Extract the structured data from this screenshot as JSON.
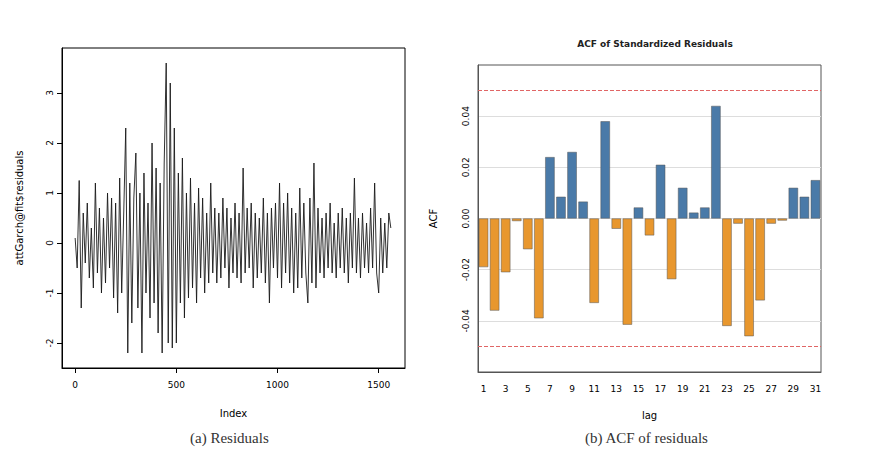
{
  "chart_data": [
    {
      "type": "line",
      "caption": "(a) Residuals",
      "x_label": "Index",
      "y_label": "attGarch@fit$residuals",
      "color": "#1a1a1a",
      "grid": false,
      "xlim": [
        -65,
        1630
      ],
      "xticks": [
        0,
        500,
        1000,
        1500
      ],
      "ylim": [
        -2.5,
        3.9
      ],
      "yticks": [
        -2,
        -1,
        0,
        1,
        2,
        3
      ],
      "x": [
        0,
        10,
        20,
        30,
        40,
        50,
        60,
        70,
        80,
        90,
        100,
        110,
        120,
        130,
        140,
        150,
        160,
        170,
        180,
        190,
        200,
        210,
        220,
        230,
        240,
        250,
        260,
        270,
        280,
        290,
        300,
        310,
        320,
        330,
        340,
        350,
        360,
        370,
        380,
        390,
        400,
        410,
        420,
        430,
        440,
        450,
        460,
        470,
        480,
        490,
        500,
        510,
        520,
        530,
        540,
        550,
        560,
        570,
        580,
        590,
        600,
        610,
        620,
        630,
        640,
        650,
        660,
        670,
        680,
        690,
        700,
        710,
        720,
        730,
        740,
        750,
        760,
        770,
        780,
        790,
        800,
        810,
        820,
        830,
        840,
        850,
        860,
        870,
        880,
        890,
        900,
        910,
        920,
        930,
        940,
        950,
        960,
        970,
        980,
        990,
        1000,
        1010,
        1020,
        1030,
        1040,
        1050,
        1060,
        1070,
        1080,
        1090,
        1100,
        1110,
        1120,
        1130,
        1140,
        1150,
        1160,
        1170,
        1180,
        1190,
        1200,
        1210,
        1220,
        1230,
        1240,
        1250,
        1260,
        1270,
        1280,
        1290,
        1300,
        1310,
        1320,
        1330,
        1340,
        1350,
        1360,
        1370,
        1380,
        1390,
        1400,
        1410,
        1420,
        1430,
        1440,
        1450,
        1460,
        1470,
        1480,
        1490,
        1500,
        1510,
        1520,
        1530,
        1540,
        1550,
        1560
      ],
      "values": [
        0.1,
        -0.5,
        1.25,
        -1.3,
        0.6,
        -0.4,
        0.8,
        -0.7,
        0.3,
        -0.9,
        1.2,
        -0.6,
        0.7,
        -1.0,
        0.5,
        -0.8,
        1.0,
        -0.5,
        0.9,
        -1.1,
        0.8,
        -1.4,
        1.3,
        -1.0,
        0.6,
        2.3,
        -2.2,
        1.2,
        -1.6,
        0.9,
        1.8,
        -1.3,
        1.0,
        -2.2,
        1.4,
        -1.0,
        0.8,
        -1.5,
        2.0,
        -1.2,
        1.5,
        -1.8,
        1.2,
        -2.2,
        1.6,
        3.6,
        -2.0,
        3.2,
        -2.1,
        2.3,
        -2.0,
        1.4,
        -1.2,
        1.7,
        -1.5,
        1.0,
        -1.1,
        1.3,
        -0.9,
        0.8,
        -1.2,
        1.1,
        -0.7,
        0.9,
        -1.0,
        0.6,
        -0.8,
        1.2,
        -0.6,
        0.7,
        -0.8,
        0.6,
        -0.7,
        0.9,
        -0.5,
        0.7,
        -0.9,
        0.5,
        -0.6,
        0.8,
        -0.7,
        0.6,
        -0.8,
        1.5,
        -0.6,
        0.7,
        -0.5,
        0.8,
        -0.9,
        0.6,
        -0.7,
        0.5,
        -0.6,
        0.9,
        -0.8,
        0.6,
        -1.2,
        0.7,
        -0.5,
        0.8,
        -0.7,
        1.2,
        -0.9,
        0.8,
        -0.6,
        1.0,
        -0.8,
        0.7,
        -1.0,
        0.6,
        -0.9,
        1.1,
        -0.7,
        0.8,
        -0.6,
        -1.2,
        0.9,
        -0.8,
        1.6,
        -0.9,
        0.7,
        -0.6,
        0.5,
        -0.7,
        0.6,
        -0.5,
        0.8,
        -0.6,
        0.4,
        -0.7,
        0.6,
        -0.5,
        0.7,
        -0.6,
        0.5,
        -0.8,
        0.6,
        -0.5,
        1.3,
        -0.6,
        0.5,
        -0.7,
        0.6,
        -0.5,
        0.4,
        -0.6,
        0.7,
        -0.5,
        1.2,
        -0.6,
        -1.0,
        0.5,
        -0.6,
        0.4,
        -0.5,
        0.6,
        0.3
      ]
    },
    {
      "type": "bar",
      "title": "ACF of Standardized Residuals",
      "caption": "(b) ACF of residuals",
      "x_label": "lag",
      "y_label": "ACF",
      "grid": true,
      "categories": [
        1,
        null,
        3,
        null,
        5,
        null,
        7,
        null,
        9,
        null,
        11,
        null,
        13,
        null,
        15,
        null,
        17,
        null,
        19,
        null,
        21,
        null,
        23,
        null,
        25,
        null,
        27,
        null,
        29,
        null,
        31
      ],
      "values": [
        -0.019,
        -0.036,
        -0.021,
        -0.001,
        -0.012,
        -0.039,
        0.024,
        0.0085,
        0.026,
        0.0066,
        -0.033,
        0.038,
        -0.004,
        -0.0415,
        0.0043,
        -0.0066,
        0.021,
        -0.0237,
        0.012,
        0.0023,
        0.0043,
        0.044,
        -0.042,
        -0.002,
        -0.046,
        -0.032,
        -0.002,
        -0.0008,
        0.012,
        0.0085,
        0.015
      ],
      "colors": [
        "#e8972e",
        "#e8972e",
        "#e8972e",
        "#e8972e",
        "#e8972e",
        "#e8972e",
        "#4a7aa8",
        "#4a7aa8",
        "#4a7aa8",
        "#4a7aa8",
        "#e8972e",
        "#4a7aa8",
        "#e8972e",
        "#e8972e",
        "#4a7aa8",
        "#e8972e",
        "#4a7aa8",
        "#e8972e",
        "#4a7aa8",
        "#4a7aa8",
        "#4a7aa8",
        "#4a7aa8",
        "#e8972e",
        "#e8972e",
        "#e8972e",
        "#e8972e",
        "#e8972e",
        "#e8972e",
        "#4a7aa8",
        "#4a7aa8",
        "#4a7aa8"
      ],
      "bounds": [
        -0.0495,
        0.0495
      ],
      "ylim": [
        -0.06,
        0.06
      ],
      "yticks": [
        {
          "value": -0.04,
          "label": "-0.04"
        },
        {
          "value": -0.02,
          "label": "-0.02"
        },
        {
          "value": 0,
          "label": "0.00"
        },
        {
          "value": 0.02,
          "label": "0.02"
        },
        {
          "value": 0.04,
          "label": "0.04"
        }
      ]
    }
  ]
}
